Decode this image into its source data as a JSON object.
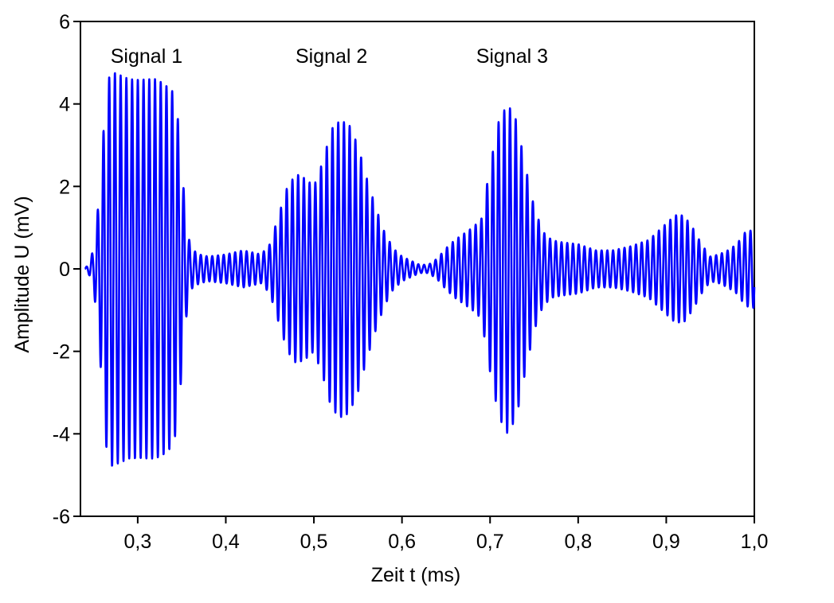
{
  "chart_data": {
    "type": "line",
    "xlabel": "Zeit t (ms)",
    "ylabel": "Amplitude U (mV)",
    "xlim": [
      0.235,
      1.0
    ],
    "ylim": [
      -6,
      6
    ],
    "xticks": [
      {
        "value": 0.3,
        "label": "0,3"
      },
      {
        "value": 0.4,
        "label": "0,4"
      },
      {
        "value": 0.5,
        "label": "0,5"
      },
      {
        "value": 0.6,
        "label": "0,6"
      },
      {
        "value": 0.7,
        "label": "0,7"
      },
      {
        "value": 0.8,
        "label": "0,8"
      },
      {
        "value": 0.9,
        "label": "0,9"
      },
      {
        "value": 1.0,
        "label": "1,0"
      }
    ],
    "yticks": [
      {
        "value": -6,
        "label": "-6"
      },
      {
        "value": -4,
        "label": "-4"
      },
      {
        "value": -2,
        "label": "-2"
      },
      {
        "value": 0,
        "label": "0"
      },
      {
        "value": 2,
        "label": "2"
      },
      {
        "value": 4,
        "label": "4"
      },
      {
        "value": 6,
        "label": "6"
      }
    ],
    "grid": false,
    "line_color": "#0000ff",
    "annotations": [
      {
        "text": "Signal 1",
        "x": 0.31,
        "y": 5.0
      },
      {
        "text": "Signal 2",
        "x": 0.52,
        "y": 5.0
      },
      {
        "text": "Signal 3",
        "x": 0.725,
        "y": 5.0
      }
    ],
    "series": [
      {
        "oscillation_period_ms": 0.0065,
        "x": [
          0.24,
          0.245,
          0.25,
          0.255,
          0.26,
          0.265,
          0.27,
          0.28,
          0.29,
          0.3,
          0.31,
          0.32,
          0.33,
          0.34,
          0.345,
          0.35,
          0.355,
          0.36,
          0.37,
          0.38,
          0.4,
          0.42,
          0.44,
          0.45,
          0.46,
          0.47,
          0.48,
          0.49,
          0.5,
          0.51,
          0.52,
          0.53,
          0.54,
          0.55,
          0.56,
          0.57,
          0.58,
          0.59,
          0.6,
          0.61,
          0.62,
          0.63,
          0.64,
          0.65,
          0.66,
          0.67,
          0.68,
          0.69,
          0.7,
          0.71,
          0.72,
          0.73,
          0.74,
          0.75,
          0.76,
          0.77,
          0.78,
          0.8,
          0.82,
          0.84,
          0.86,
          0.88,
          0.9,
          0.91,
          0.92,
          0.93,
          0.94,
          0.95,
          0.96,
          0.97,
          0.98,
          0.99,
          1.0
        ],
        "envelope": [
          0.0,
          0.15,
          0.5,
          1.5,
          3.0,
          4.5,
          4.8,
          4.7,
          4.6,
          4.6,
          4.6,
          4.6,
          4.5,
          4.3,
          3.8,
          2.5,
          1.2,
          0.5,
          0.35,
          0.3,
          0.35,
          0.45,
          0.35,
          0.6,
          1.3,
          2.0,
          2.3,
          2.2,
          2.0,
          2.6,
          3.4,
          3.6,
          3.5,
          3.0,
          2.2,
          1.5,
          0.9,
          0.5,
          0.3,
          0.2,
          0.1,
          0.1,
          0.25,
          0.5,
          0.7,
          0.85,
          1.0,
          1.2,
          2.5,
          3.6,
          4.0,
          3.6,
          2.5,
          1.5,
          0.9,
          0.7,
          0.65,
          0.6,
          0.45,
          0.45,
          0.55,
          0.7,
          1.1,
          1.3,
          1.3,
          1.0,
          0.6,
          0.3,
          0.35,
          0.45,
          0.6,
          0.9,
          0.95
        ]
      }
    ]
  }
}
